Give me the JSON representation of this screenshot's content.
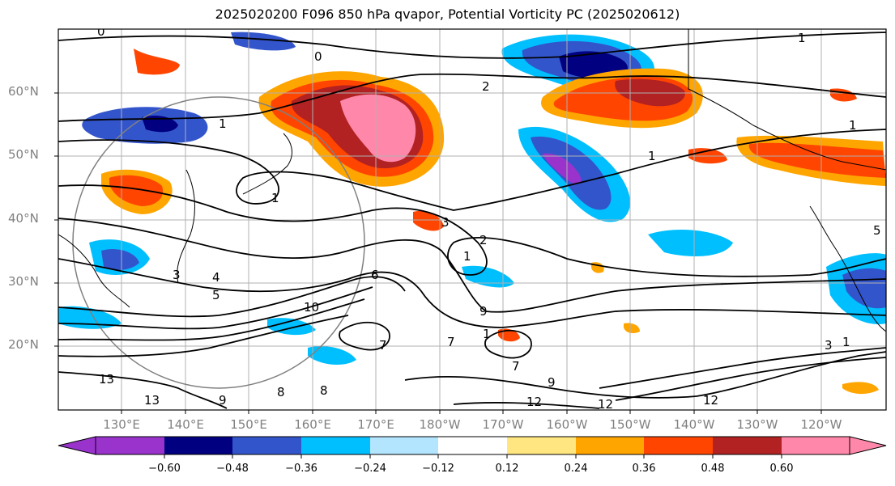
{
  "title": "2025020200 F096 850 hPa qvapor, Potential Vorticity PC (2025020612)",
  "lat_labels": [
    "60°N",
    "50°N",
    "40°N",
    "30°N",
    "20°N"
  ],
  "lon_labels": [
    "130°E",
    "140°E",
    "150°E",
    "160°E",
    "170°E",
    "180°W",
    "170°W",
    "160°W",
    "150°W",
    "140°W",
    "130°W",
    "120°W"
  ],
  "colorbar": {
    "ticks": [
      "−0.60",
      "−0.48",
      "−0.36",
      "−0.24",
      "−0.12",
      "0.12",
      "0.24",
      "0.36",
      "0.48",
      "0.60"
    ],
    "colors": [
      "#9933cc",
      "#000080",
      "#3355cc",
      "#00bfff",
      "#b3e5ff",
      "#ffffff",
      "#ffe680",
      "#ffa500",
      "#ff4500",
      "#b22222",
      "#ff88aa"
    ]
  },
  "contour_labels": [
    "0",
    "0",
    "1",
    "2",
    "1",
    "1",
    "1",
    "3",
    "4",
    "5",
    "3",
    "2",
    "1",
    "6",
    "9",
    "9",
    "7",
    "7",
    "7",
    "1",
    "10",
    "12",
    "13",
    "13",
    "12",
    "12",
    "9",
    "8",
    "8",
    "5",
    "1",
    "3",
    "1"
  ]
}
